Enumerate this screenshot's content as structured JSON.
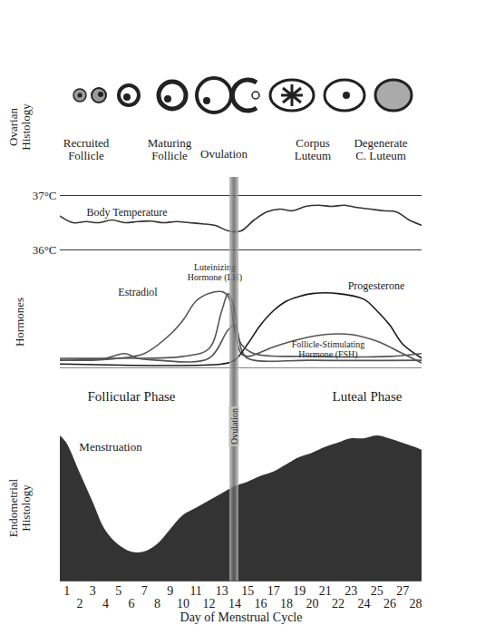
{
  "ovarian_histology": {
    "label": "Ovarian Histology",
    "stages": [
      "Recruited Follicle",
      "Maturing Follicle",
      "Ovulation",
      "Corpus Luteum",
      "Degenerate C. Luteum"
    ]
  },
  "ovulation": {
    "label": "Ovulation",
    "day": 14
  },
  "chart_data": [
    {
      "type": "line",
      "title": "Body Temperature",
      "x": [
        0.5,
        1.5,
        2.5,
        3.5,
        4.5,
        5.5,
        6.5,
        7.5,
        8.5,
        9.5,
        10.5,
        11.5,
        12.5,
        13.5,
        14.5,
        15.5,
        16.5,
        17.5,
        18.5,
        19.5,
        20.5,
        21.5,
        22.5,
        23.5,
        24.5,
        25.5,
        26.5,
        27.5,
        28.5
      ],
      "values": [
        36.62,
        36.5,
        36.52,
        36.5,
        36.55,
        36.5,
        36.52,
        36.53,
        36.5,
        36.52,
        36.5,
        36.48,
        36.45,
        36.35,
        36.35,
        36.55,
        36.7,
        36.75,
        36.72,
        36.8,
        36.82,
        36.8,
        36.82,
        36.78,
        36.75,
        36.72,
        36.7,
        36.55,
        36.45
      ],
      "color": "#333333",
      "xlim": [
        0.5,
        28.5
      ],
      "ylim": [
        36,
        37
      ],
      "yticks": [
        {
          "value": 36,
          "label": "36°C"
        },
        {
          "value": 37,
          "label": "37°C"
        }
      ],
      "grid": true,
      "tick_labels": "y"
    },
    {
      "type": "line",
      "ylabel": "Hormones",
      "annotations": [
        "Follicular Phase",
        "Luteal Phase"
      ],
      "xlim": [
        0.5,
        28.5
      ],
      "ylim": [
        0,
        100
      ],
      "tick_labels": false,
      "series": [
        {
          "name": "Estradiol",
          "color": "#555555",
          "x": [
            0.5,
            3,
            5,
            7,
            9,
            10,
            11,
            12,
            13,
            13.5,
            14,
            14.5,
            15,
            17,
            19,
            21,
            23,
            25,
            27,
            28.5
          ],
          "values": [
            8,
            8,
            10,
            15,
            35,
            50,
            70,
            78,
            80,
            75,
            40,
            15,
            12,
            22,
            30,
            35,
            35,
            28,
            15,
            5
          ]
        },
        {
          "name": "Luteinizing Hormone (LH)",
          "color": "#555555",
          "x": [
            0.5,
            5,
            10,
            12,
            13,
            13.5,
            14,
            14.5,
            15,
            20,
            28.5
          ],
          "values": [
            10,
            10,
            12,
            20,
            60,
            78,
            60,
            20,
            10,
            8,
            8
          ]
        },
        {
          "name": "Progesterone",
          "color": "#1a1a1a",
          "x": [
            0.5,
            13,
            14,
            15,
            16,
            17,
            18,
            19,
            20,
            22,
            24,
            25,
            26,
            27,
            28.5
          ],
          "values": [
            4,
            4,
            8,
            25,
            45,
            60,
            70,
            75,
            78,
            78,
            72,
            60,
            45,
            25,
            10
          ]
        },
        {
          "name": "Follicle-Stimulating Hormone (FSH)",
          "color": "#555555",
          "x": [
            0.5,
            4,
            5.5,
            6.5,
            8,
            12,
            13.5,
            14,
            14.5,
            15.5,
            20,
            26,
            28.5
          ],
          "values": [
            8,
            10,
            15,
            10,
            8,
            10,
            40,
            45,
            25,
            15,
            12,
            12,
            15
          ]
        }
      ]
    },
    {
      "type": "area",
      "ylabel": "Endometrial Histology",
      "annotations": [
        "Menstruation"
      ],
      "x": [
        0.5,
        1,
        2,
        3,
        4,
        5,
        6,
        7,
        8,
        9,
        10,
        11,
        12,
        13,
        14,
        15,
        16,
        17,
        18,
        19,
        20,
        21,
        22,
        23,
        24,
        25,
        26,
        27,
        28,
        28.5
      ],
      "values": [
        100,
        95,
        75,
        55,
        35,
        25,
        20,
        20,
        25,
        35,
        45,
        50,
        55,
        60,
        65,
        68,
        72,
        75,
        80,
        85,
        88,
        92,
        95,
        98,
        98,
        100,
        98,
        95,
        92,
        90
      ],
      "color": "#333333",
      "xlim": [
        0.5,
        28.5
      ],
      "ylim": [
        0,
        100
      ],
      "xticks": [
        1,
        2,
        3,
        4,
        5,
        6,
        7,
        8,
        9,
        10,
        11,
        12,
        13,
        14,
        15,
        16,
        17,
        18,
        19,
        20,
        21,
        22,
        23,
        24,
        25,
        26,
        27,
        28
      ],
      "xlabel": "Day of Menstrual Cycle",
      "tick_labels": "x"
    }
  ]
}
